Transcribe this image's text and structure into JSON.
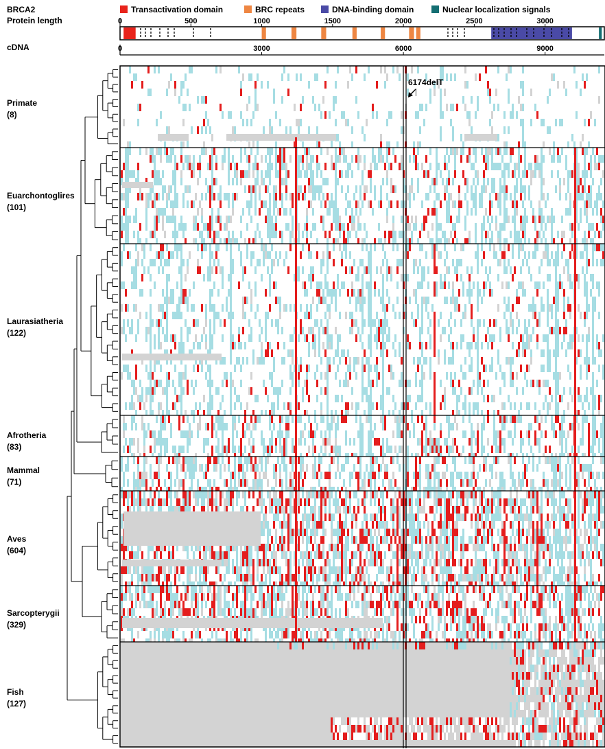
{
  "title": "BRCA2",
  "protein_axis_label": "Protein length",
  "cdna_axis_label": "cDNA",
  "legend": [
    {
      "label": "Transactivation domain",
      "color": "#e8231b"
    },
    {
      "label": "BRC repeats",
      "color": "#ee8642"
    },
    {
      "label": "DNA-binding domain",
      "color": "#4a4aa6"
    },
    {
      "label": "Nuclear localization signals",
      "color": "#146e72"
    }
  ],
  "protein_axis": {
    "min": 0,
    "max": 3418,
    "ticks": [
      "0",
      "500",
      "1000",
      "1500",
      "2000",
      "2500",
      "3000"
    ],
    "tick_values": [
      0,
      500,
      1000,
      1500,
      2000,
      2500,
      3000
    ]
  },
  "cdna_axis": {
    "min": 0,
    "max": 10254,
    "ticks": [
      "0",
      "3000",
      "6000",
      "9000"
    ],
    "tick_values": [
      0,
      3000,
      6000,
      9000
    ]
  },
  "domains": [
    {
      "type": "Transactivation domain",
      "start": 25,
      "end": 110
    },
    {
      "type": "BRC repeats",
      "start": 1000,
      "end": 1030
    },
    {
      "type": "BRC repeats",
      "start": 1210,
      "end": 1245
    },
    {
      "type": "BRC repeats",
      "start": 1420,
      "end": 1455
    },
    {
      "type": "BRC repeats",
      "start": 1640,
      "end": 1670
    },
    {
      "type": "BRC repeats",
      "start": 1840,
      "end": 1870
    },
    {
      "type": "BRC repeats",
      "start": 2040,
      "end": 2075
    },
    {
      "type": "BRC repeats",
      "start": 2090,
      "end": 2120
    },
    {
      "type": "DNA-binding domain",
      "start": 2620,
      "end": 3190
    },
    {
      "type": "Nuclear localization signals",
      "start": 3380,
      "end": 3400
    }
  ],
  "annotation": {
    "label": "6174delT",
    "position_cdna": 6174
  },
  "clades": [
    {
      "name": "Primate",
      "count": "(8)"
    },
    {
      "name": "Euarchontoglires",
      "count": "(101)"
    },
    {
      "name": "Laurasiatheria",
      "count": "(122)"
    },
    {
      "name": "Afrotheria",
      "count": "(83)"
    },
    {
      "name": "Mammal",
      "count": "(71)"
    },
    {
      "name": "Aves",
      "count": "(604)"
    },
    {
      "name": "Sarcopterygii",
      "count": "(329)"
    },
    {
      "name": "Fish",
      "count": "(127)"
    }
  ],
  "colors": {
    "variant": "#a6dde3",
    "deleterious": "#e41d1d",
    "missing": "#d3d3d3",
    "frame": "#000000"
  }
}
